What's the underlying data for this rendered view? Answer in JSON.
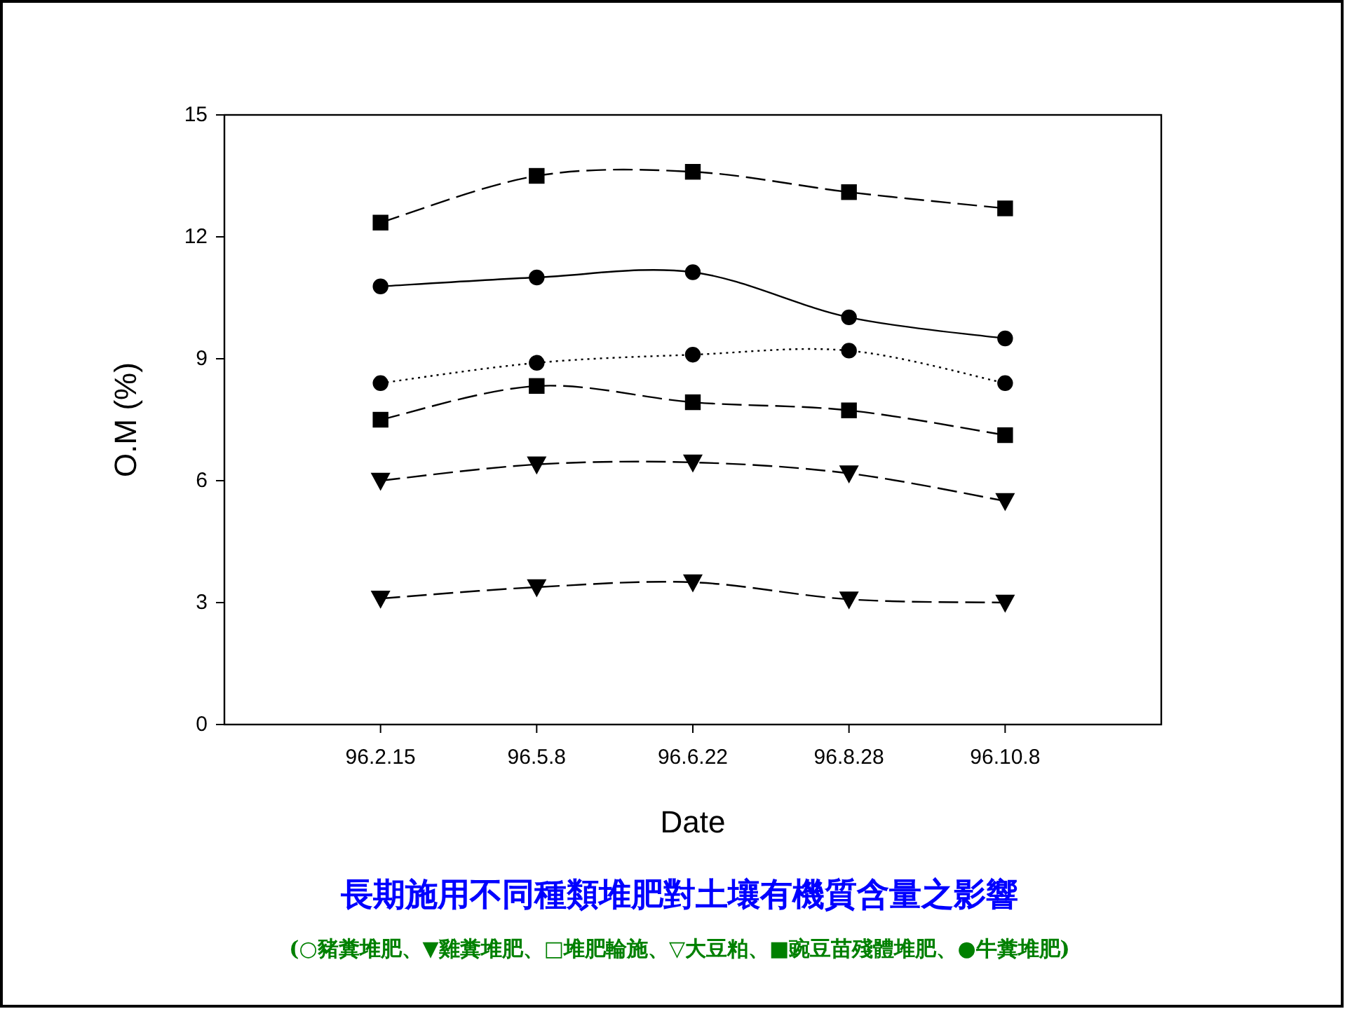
{
  "chart_data": {
    "type": "line",
    "title": "長期施用不同種類堆肥對土壤有機質含量之影響",
    "subtitle": "(○豬糞堆肥、▼雞糞堆肥、□堆肥輪施、▽大豆粕、■豌豆苗殘體堆肥、●牛糞堆肥)",
    "xlabel": "Date",
    "ylabel": "O.M (%)",
    "categories": [
      "96.2.15",
      "96.5.8",
      "96.6.22",
      "96.8.28",
      "96.10.8"
    ],
    "ylim": [
      0,
      15
    ],
    "yticks": [
      0,
      3,
      6,
      9,
      12,
      15
    ],
    "grid": false,
    "series": [
      {
        "color": "#000000",
        "marker": "square",
        "line_style": "dashed",
        "values": [
          12.35,
          13.5,
          13.6,
          13.1,
          12.7
        ]
      },
      {
        "color": "#000000",
        "marker": "circle",
        "line_style": "solid",
        "values": [
          10.78,
          11.0,
          11.13,
          10.02,
          9.5
        ]
      },
      {
        "color": "#000000",
        "marker": "circle",
        "line_style": "dotted",
        "values": [
          8.4,
          8.9,
          9.1,
          9.2,
          8.4
        ]
      },
      {
        "color": "#000000",
        "marker": "square",
        "line_style": "dashed",
        "values": [
          7.5,
          8.33,
          7.93,
          7.73,
          7.12
        ]
      },
      {
        "color": "#000000",
        "marker": "triangle",
        "line_style": "dashed",
        "values": [
          6.0,
          6.4,
          6.45,
          6.18,
          5.5
        ]
      },
      {
        "color": "#000000",
        "marker": "triangle",
        "line_style": "dashed",
        "values": [
          3.1,
          3.38,
          3.5,
          3.08,
          3.0
        ]
      }
    ]
  }
}
